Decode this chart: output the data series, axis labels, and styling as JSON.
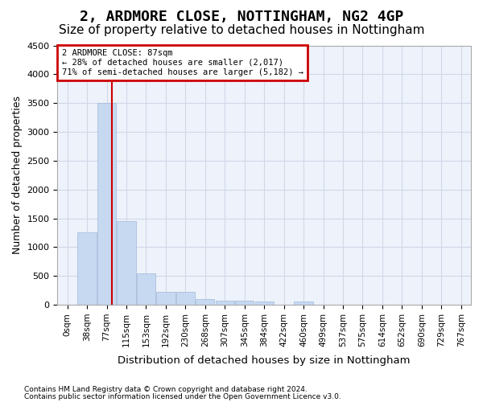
{
  "title": "2, ARDMORE CLOSE, NOTTINGHAM, NG2 4GP",
  "subtitle": "Size of property relative to detached houses in Nottingham",
  "xlabel": "Distribution of detached houses by size in Nottingham",
  "ylabel": "Number of detached properties",
  "footnote1": "Contains HM Land Registry data © Crown copyright and database right 2024.",
  "footnote2": "Contains public sector information licensed under the Open Government Licence v3.0.",
  "bin_labels": [
    "0sqm",
    "38sqm",
    "77sqm",
    "115sqm",
    "153sqm",
    "192sqm",
    "230sqm",
    "268sqm",
    "307sqm",
    "345sqm",
    "384sqm",
    "422sqm",
    "460sqm",
    "499sqm",
    "537sqm",
    "575sqm",
    "614sqm",
    "652sqm",
    "690sqm",
    "729sqm",
    "767sqm"
  ],
  "bar_values": [
    5,
    1250,
    3500,
    1450,
    550,
    225,
    225,
    100,
    75,
    75,
    50,
    0,
    50,
    0,
    0,
    0,
    0,
    0,
    0,
    0,
    0
  ],
  "bar_color": "#c6d9f1",
  "bar_edge_color": "#a0b8d8",
  "grid_color": "#d0d8e8",
  "background_color": "#eef2fa",
  "property_line_x": 2.263,
  "property_line_color": "#cc0000",
  "annotation_text": "2 ARDMORE CLOSE: 87sqm\n← 28% of detached houses are smaller (2,017)\n71% of semi-detached houses are larger (5,182) →",
  "annotation_box_color": "#cc0000",
  "annotation_fill": "#ffffff",
  "ylim": [
    0,
    4500
  ],
  "yticks": [
    0,
    500,
    1000,
    1500,
    2000,
    2500,
    3000,
    3500,
    4000,
    4500
  ],
  "title_fontsize": 13,
  "subtitle_fontsize": 11,
  "axis_fontsize": 9,
  "tick_fontsize": 8
}
